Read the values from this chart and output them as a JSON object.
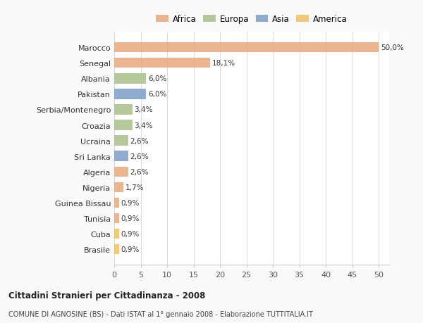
{
  "countries": [
    "Marocco",
    "Senegal",
    "Albania",
    "Pakistan",
    "Serbia/Montenegro",
    "Croazia",
    "Ucraina",
    "Sri Lanka",
    "Algeria",
    "Nigeria",
    "Guinea Bissau",
    "Tunisia",
    "Cuba",
    "Brasile"
  ],
  "values": [
    50.0,
    18.1,
    6.0,
    6.0,
    3.4,
    3.4,
    2.6,
    2.6,
    2.6,
    1.7,
    0.9,
    0.9,
    0.9,
    0.9
  ],
  "labels": [
    "50,0%",
    "18,1%",
    "6,0%",
    "6,0%",
    "3,4%",
    "3,4%",
    "2,6%",
    "2,6%",
    "2,6%",
    "1,7%",
    "0,9%",
    "0,9%",
    "0,9%",
    "0,9%"
  ],
  "continents": [
    "Africa",
    "Africa",
    "Europa",
    "Asia",
    "Europa",
    "Europa",
    "Europa",
    "Asia",
    "Africa",
    "Africa",
    "Africa",
    "Africa",
    "America",
    "America"
  ],
  "colors": {
    "Africa": "#E8A87C",
    "Europa": "#A8C08A",
    "Asia": "#7B9DC8",
    "America": "#F0C060"
  },
  "legend_order": [
    "Africa",
    "Europa",
    "Asia",
    "America"
  ],
  "title1": "Cittadini Stranieri per Cittadinanza - 2008",
  "title2": "COMUNE DI AGNOSINE (BS) - Dati ISTAT al 1° gennaio 2008 - Elaborazione TUTTITALIA.IT",
  "xlim": [
    0,
    52
  ],
  "xticks": [
    0,
    5,
    10,
    15,
    20,
    25,
    30,
    35,
    40,
    45,
    50
  ],
  "background_color": "#f9f9f9",
  "bar_background": "#ffffff",
  "grid_color": "#dddddd"
}
